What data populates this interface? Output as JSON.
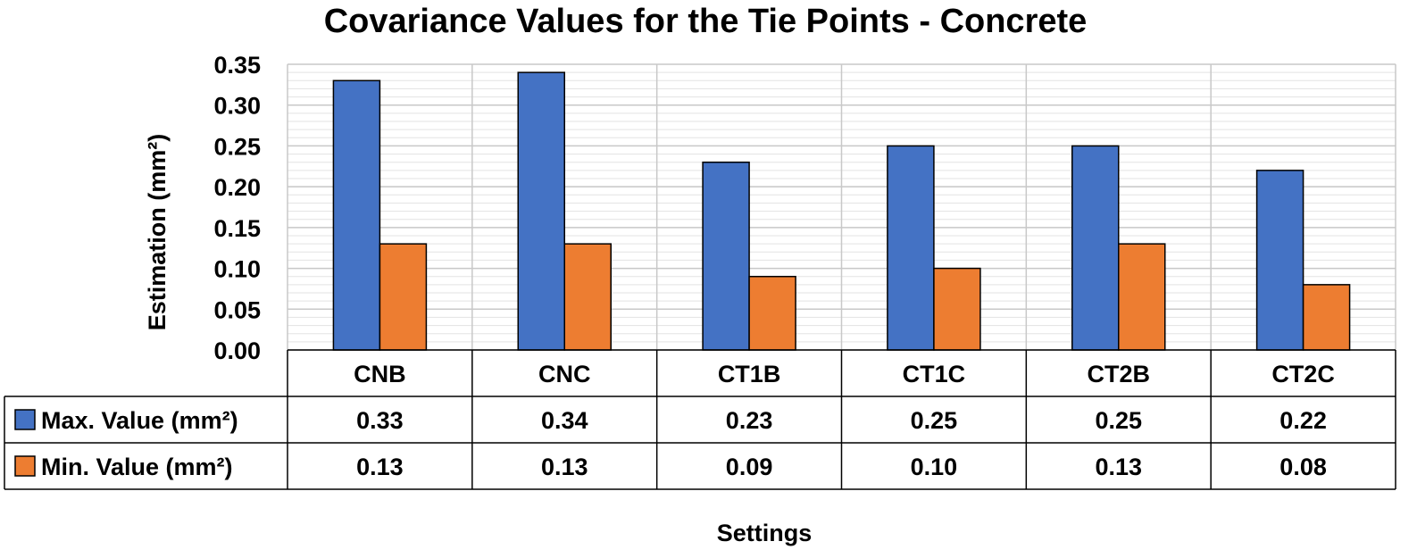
{
  "chart_data": {
    "type": "bar",
    "title": "Covariance Values for the Tie Points - Concrete",
    "xlabel": "Settings",
    "ylabel": "Estimation (mm²)",
    "categories": [
      "CNB",
      "CNC",
      "CT1B",
      "CT1C",
      "CT2B",
      "CT2C"
    ],
    "series": [
      {
        "name": "Max. Value (mm²)",
        "color": "#4472C4",
        "values": [
          0.33,
          0.34,
          0.23,
          0.25,
          0.25,
          0.22
        ],
        "labels": [
          "0.33",
          "0.34",
          "0.23",
          "0.25",
          "0.25",
          "0.22"
        ]
      },
      {
        "name": "Min. Value (mm²)",
        "color": "#ED7D31",
        "values": [
          0.13,
          0.13,
          0.09,
          0.1,
          0.13,
          0.08
        ],
        "labels": [
          "0.13",
          "0.13",
          "0.09",
          "0.10",
          "0.13",
          "0.08"
        ]
      }
    ],
    "ylim": [
      0,
      0.35
    ],
    "yticks": [
      "0.00",
      "0.05",
      "0.10",
      "0.15",
      "0.20",
      "0.25",
      "0.30",
      "0.35"
    ],
    "grid": true,
    "legend": "data-table"
  }
}
